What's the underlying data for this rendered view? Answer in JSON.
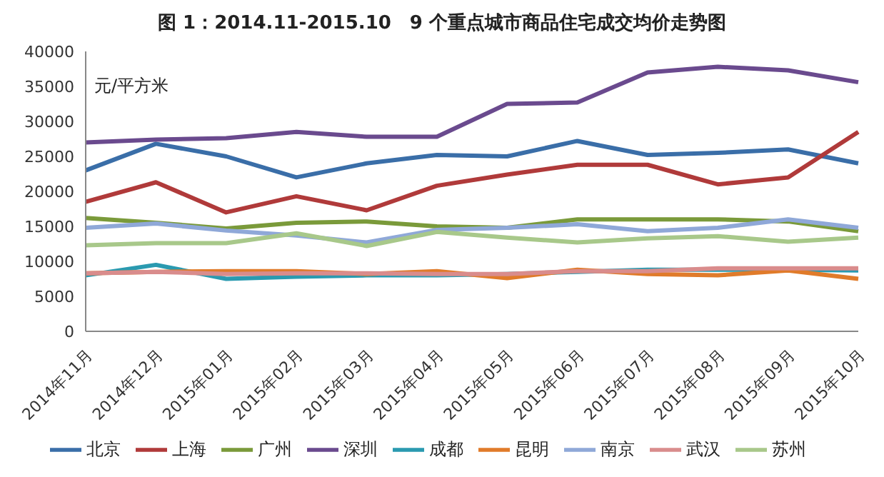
{
  "chart_data": {
    "type": "line",
    "title": "图 1：2014.11-2015.10　9 个重点城市商品住宅成交均价走势图",
    "ylabel": "元/平方米",
    "categories": [
      "2014年11月",
      "2014年12月",
      "2015年01月",
      "2015年02月",
      "2015年03月",
      "2015年04月",
      "2015年05月",
      "2015年06月",
      "2015年07月",
      "2015年08月",
      "2015年09月",
      "2015年10月"
    ],
    "series": [
      {
        "name": "北京",
        "color": "#3a6ea8",
        "values": [
          23000,
          26800,
          25000,
          22000,
          24000,
          25200,
          25000,
          27200,
          25200,
          25500,
          26000,
          24000
        ]
      },
      {
        "name": "上海",
        "color": "#b03a3a",
        "values": [
          18500,
          21300,
          17000,
          19300,
          17300,
          20800,
          22400,
          23800,
          23800,
          21000,
          22000,
          28500
        ]
      },
      {
        "name": "广州",
        "color": "#7a9a3a",
        "values": [
          16200,
          15500,
          14700,
          15500,
          15700,
          15000,
          14800,
          16000,
          16000,
          16000,
          15700,
          14300
        ]
      },
      {
        "name": "深圳",
        "color": "#6a4a8e",
        "values": [
          27000,
          27400,
          27600,
          28500,
          27800,
          27800,
          32500,
          32700,
          37000,
          37800,
          37300,
          35600
        ]
      },
      {
        "name": "成都",
        "color": "#2a9ab0",
        "values": [
          8000,
          9500,
          7500,
          7800,
          8000,
          8000,
          8200,
          8500,
          8800,
          8800,
          8800,
          8700
        ]
      },
      {
        "name": "昆明",
        "color": "#e07b2a",
        "values": [
          8300,
          8500,
          8600,
          8600,
          8200,
          8600,
          7600,
          8800,
          8200,
          8000,
          8700,
          7500
        ]
      },
      {
        "name": "南京",
        "color": "#8fa8d8",
        "values": [
          14800,
          15400,
          14400,
          13700,
          12700,
          14500,
          14800,
          15300,
          14300,
          14800,
          16000,
          14800
        ]
      },
      {
        "name": "武汉",
        "color": "#d98c8c",
        "values": [
          8300,
          8500,
          8200,
          8300,
          8300,
          8200,
          8200,
          8600,
          8600,
          9000,
          9000,
          9000
        ]
      },
      {
        "name": "苏州",
        "color": "#a8c88a",
        "values": [
          12300,
          12600,
          12600,
          14000,
          12200,
          14200,
          13400,
          12700,
          13300,
          13600,
          12800,
          13400
        ]
      }
    ],
    "ylim": [
      0,
      40000
    ],
    "yticks": [
      0,
      5000,
      10000,
      15000,
      20000,
      25000,
      30000,
      35000,
      40000
    ],
    "grid": false,
    "legend": "bottom",
    "marker": "none",
    "line_style": "solid"
  }
}
